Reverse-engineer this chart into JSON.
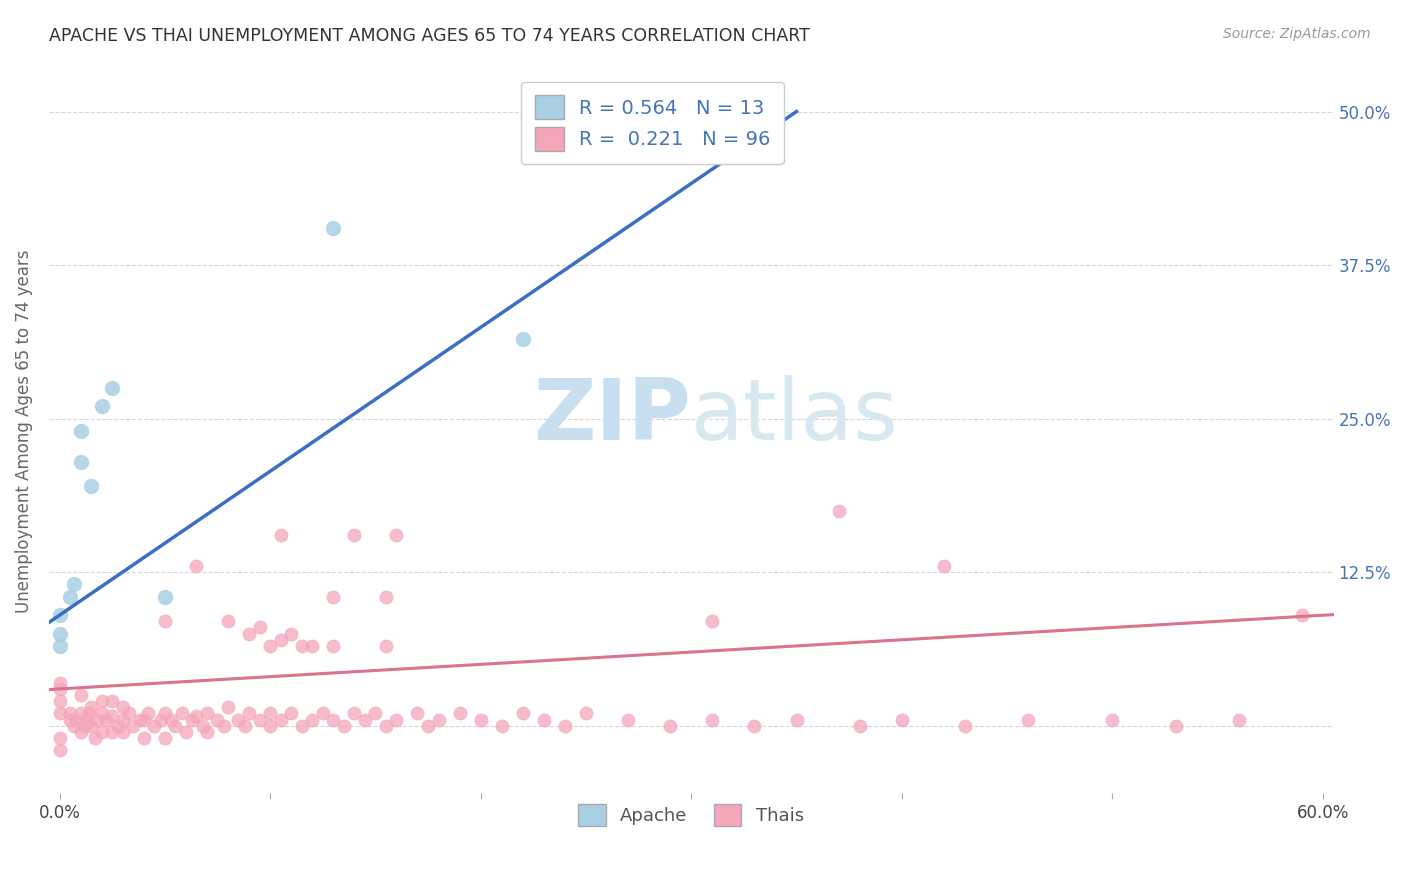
{
  "title": "APACHE VS THAI UNEMPLOYMENT AMONG AGES 65 TO 74 YEARS CORRELATION CHART",
  "source": "Source: ZipAtlas.com",
  "ylabel": "Unemployment Among Ages 65 to 74 years",
  "xlim": [
    -0.005,
    0.605
  ],
  "ylim": [
    -0.055,
    0.535
  ],
  "xticks": [
    0.0,
    0.1,
    0.2,
    0.3,
    0.4,
    0.5,
    0.6
  ],
  "xticklabels": [
    "0.0%",
    "",
    "",
    "",
    "",
    "",
    "60.0%"
  ],
  "ytick_positions": [
    0.0,
    0.125,
    0.25,
    0.375,
    0.5
  ],
  "yticklabels_right": [
    "",
    "12.5%",
    "25.0%",
    "37.5%",
    "50.0%"
  ],
  "apache_r": 0.564,
  "apache_n": 13,
  "thai_r": 0.221,
  "thai_n": 96,
  "apache_color": "#a8cfe3",
  "thai_color": "#f4a6b8",
  "apache_line_color": "#3a6fc4",
  "thai_line_color": "#d9748a",
  "legend_text_color": "#4575b4",
  "watermark_zip_color": "#c8dff0",
  "watermark_atlas_color": "#c8dff0",
  "apache_points_x": [
    0.0,
    0.0,
    0.0,
    0.005,
    0.007,
    0.01,
    0.01,
    0.015,
    0.02,
    0.025,
    0.05,
    0.13,
    0.22
  ],
  "apache_points_y": [
    0.065,
    0.075,
    0.09,
    0.105,
    0.115,
    0.215,
    0.24,
    0.195,
    0.26,
    0.275,
    0.105,
    0.405,
    0.315
  ],
  "thai_points_x": [
    0.0,
    0.0,
    0.0,
    0.0,
    0.0,
    0.0,
    0.005,
    0.005,
    0.007,
    0.008,
    0.01,
    0.01,
    0.01,
    0.012,
    0.013,
    0.014,
    0.015,
    0.015,
    0.017,
    0.018,
    0.02,
    0.02,
    0.02,
    0.022,
    0.025,
    0.025,
    0.025,
    0.028,
    0.03,
    0.03,
    0.03,
    0.033,
    0.035,
    0.038,
    0.04,
    0.04,
    0.042,
    0.045,
    0.048,
    0.05,
    0.05,
    0.053,
    0.055,
    0.058,
    0.06,
    0.063,
    0.065,
    0.068,
    0.07,
    0.07,
    0.075,
    0.078,
    0.08,
    0.085,
    0.088,
    0.09,
    0.095,
    0.1,
    0.1,
    0.105,
    0.11,
    0.115,
    0.12,
    0.125,
    0.13,
    0.135,
    0.14,
    0.145,
    0.15,
    0.155,
    0.16,
    0.17,
    0.175,
    0.18,
    0.19,
    0.2,
    0.21,
    0.22,
    0.23,
    0.24,
    0.25,
    0.27,
    0.29,
    0.31,
    0.33,
    0.35,
    0.38,
    0.4,
    0.43,
    0.46,
    0.5,
    0.53,
    0.56,
    0.59
  ],
  "thai_points_y": [
    0.01,
    0.02,
    0.03,
    0.035,
    -0.01,
    -0.02,
    0.005,
    0.01,
    0.0,
    0.005,
    -0.005,
    0.01,
    0.025,
    0.0,
    0.005,
    0.01,
    0.0,
    0.015,
    -0.01,
    0.005,
    -0.005,
    0.01,
    0.02,
    0.005,
    -0.005,
    0.008,
    0.02,
    0.0,
    -0.005,
    0.005,
    0.015,
    0.01,
    0.0,
    0.005,
    -0.01,
    0.005,
    0.01,
    0.0,
    0.005,
    -0.01,
    0.01,
    0.005,
    0.0,
    0.01,
    -0.005,
    0.005,
    0.008,
    0.0,
    -0.005,
    0.01,
    0.005,
    0.0,
    0.015,
    0.005,
    0.0,
    0.01,
    0.005,
    0.0,
    0.01,
    0.005,
    0.01,
    0.0,
    0.005,
    0.01,
    0.005,
    0.0,
    0.01,
    0.005,
    0.01,
    0.0,
    0.005,
    0.01,
    0.0,
    0.005,
    0.01,
    0.005,
    0.0,
    0.01,
    0.005,
    0.0,
    0.01,
    0.005,
    0.0,
    0.005,
    0.0,
    0.005,
    0.0,
    0.005,
    0.0,
    0.005,
    0.005,
    0.0,
    0.005,
    0.09
  ],
  "thai_scattered_high_x": [
    0.065,
    0.105,
    0.13,
    0.14,
    0.155,
    0.16,
    0.37,
    0.42
  ],
  "thai_scattered_high_y": [
    0.13,
    0.155,
    0.105,
    0.155,
    0.105,
    0.155,
    0.175,
    0.13
  ],
  "thai_medium_x": [
    0.05,
    0.08,
    0.09,
    0.095,
    0.1,
    0.105,
    0.11,
    0.115,
    0.12,
    0.13,
    0.155,
    0.31
  ],
  "thai_medium_y": [
    0.085,
    0.085,
    0.075,
    0.08,
    0.065,
    0.07,
    0.075,
    0.065,
    0.065,
    0.065,
    0.065,
    0.085
  ]
}
